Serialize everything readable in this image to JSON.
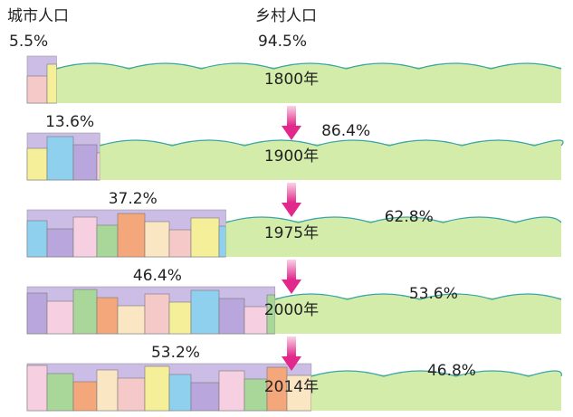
{
  "chart_data": {
    "type": "stacked-bar-horizontal",
    "categories": [
      "1800年",
      "1900年",
      "1975年",
      "2000年",
      "2014年"
    ],
    "series": [
      {
        "name": "城市人口",
        "color": "#cbbde6",
        "values": [
          5.5,
          13.6,
          37.2,
          46.4,
          53.2
        ],
        "value_labels": [
          "5.5%",
          "13.6%",
          "37.2%",
          "46.4%",
          "53.2%"
        ]
      },
      {
        "name": "乡村人口",
        "color": "#d3ecaa",
        "values": [
          94.5,
          86.4,
          62.8,
          53.6,
          46.8
        ],
        "value_labels": [
          "94.5%",
          "86.4%",
          "62.8%",
          "53.6%",
          "46.8%"
        ]
      }
    ],
    "xlim": [
      0,
      100
    ]
  }
}
